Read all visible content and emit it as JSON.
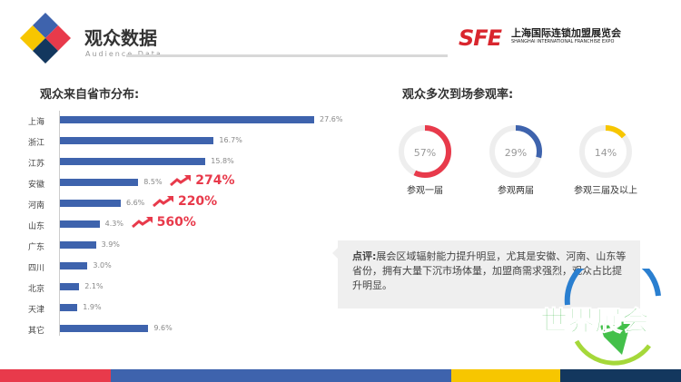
{
  "header": {
    "title": "观众数据",
    "subtitle": "Audience Data",
    "brand": {
      "mark": "SFE",
      "name_cn": "上海国际连锁加盟展览会",
      "name_en": "SHANGHAI INTERNATIONAL FRANCHISE EXPO"
    }
  },
  "left": {
    "heading": "观众来自省市分布:",
    "rows": [
      {
        "label": "上海",
        "value": 27.6,
        "text": "27.6%"
      },
      {
        "label": "浙江",
        "value": 16.7,
        "text": "16.7%"
      },
      {
        "label": "江苏",
        "value": 15.8,
        "text": "15.8%"
      },
      {
        "label": "安徽",
        "value": 8.5,
        "text": "8.5%",
        "growth": "274%"
      },
      {
        "label": "河南",
        "value": 6.6,
        "text": "6.6%",
        "growth": "220%"
      },
      {
        "label": "山东",
        "value": 4.3,
        "text": "4.3%",
        "growth": "560%"
      },
      {
        "label": "广东",
        "value": 3.9,
        "text": "3.9%"
      },
      {
        "label": "四川",
        "value": 3.0,
        "text": "3.0%"
      },
      {
        "label": "北京",
        "value": 2.1,
        "text": "2.1%"
      },
      {
        "label": "天津",
        "value": 1.9,
        "text": "1.9%"
      },
      {
        "label": "其它",
        "value": 9.6,
        "text": "9.6%"
      }
    ],
    "bar_color": "#3e63ad",
    "growth_color": "#e83a4b"
  },
  "right": {
    "heading": "观众多次到场参观率:",
    "donuts": [
      {
        "label": "参观一届",
        "value": 57,
        "text": "57%",
        "color": "#e83a4b"
      },
      {
        "label": "参观两届",
        "value": 29,
        "text": "29%",
        "color": "#3e63ad"
      },
      {
        "label": "参观三届及以上",
        "value": 14,
        "text": "14%",
        "color": "#f7c600"
      }
    ]
  },
  "comment": {
    "label": "点评:",
    "text": "展会区域辐射能力提升明显，尤其是安徽、河南、山东等省份，拥有大量下沉市场体量，加盟商需求强烈，观众占比提升明显。"
  },
  "watermark": "世界展会",
  "footer_colors": [
    "#e83a4b",
    "#3e63ad",
    "#f7c600",
    "#13375e"
  ]
}
